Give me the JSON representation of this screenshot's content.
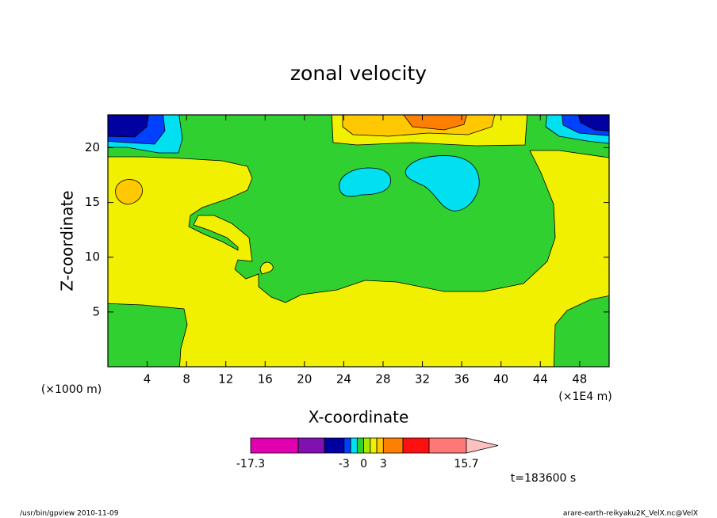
{
  "chart_data": {
    "type": "contour",
    "title": "zonal velocity",
    "x_label": "X-coordinate",
    "y_label": "Z-coordinate",
    "x_scale_note_left": "(×1000 m)",
    "x_scale_note_right": "(×1E4 m)",
    "xlim": [
      0,
      51
    ],
    "xticks": [
      4,
      8,
      12,
      16,
      20,
      24,
      28,
      32,
      36,
      40,
      44,
      48
    ],
    "ylim": [
      0,
      23
    ],
    "yticks": [
      5,
      10,
      15,
      20
    ],
    "colorbar": {
      "levels": [
        -17.3,
        -10,
        -6,
        -3,
        -2,
        -1,
        0,
        1,
        2,
        3,
        6,
        10,
        15.7
      ],
      "colors": [
        "#e000b0",
        "#8010b0",
        "#0000a0",
        "#0040ff",
        "#00e0f0",
        "#30d030",
        "#a8e800",
        "#f0f000",
        "#ffc800",
        "#ff8000",
        "#ff1010",
        "#ff7878"
      ],
      "extend_color": "#ffc0c0",
      "ticks": [
        -17.3,
        -3,
        0,
        3,
        15.7
      ]
    },
    "annotation": "t=183600 s",
    "footer_left": "/usr/bin/gpview   2010-11-09",
    "footer_right": "arare-earth-reikyaku2K_VelX.nc@VelX"
  }
}
